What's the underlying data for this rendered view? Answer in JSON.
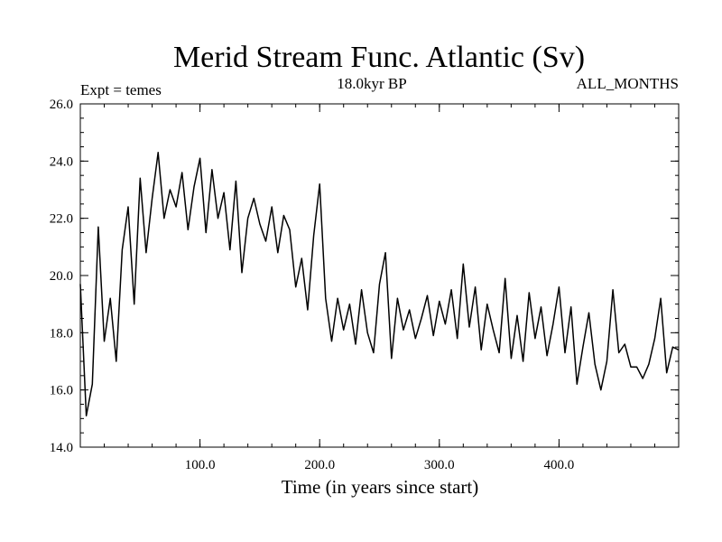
{
  "chart_data": {
    "type": "line",
    "title": "Merid Stream Func. Atlantic (Sv)",
    "subtitle_left": "Expt = temes",
    "subtitle_center": "18.0kyr BP",
    "subtitle_right": "ALL_MONTHS",
    "xlabel": "Time (in years since start)",
    "ylabel": "",
    "xlim": [
      0,
      500
    ],
    "ylim": [
      14,
      26
    ],
    "x_ticks": [
      100,
      200,
      300,
      400
    ],
    "x_tick_labels": [
      "100.0",
      "200.0",
      "300.0",
      "400.0"
    ],
    "y_ticks": [
      14,
      16,
      18,
      20,
      22,
      24,
      26
    ],
    "y_tick_labels": [
      "14.0",
      "16.0",
      "18.0",
      "20.0",
      "22.0",
      "24.0",
      "26.0"
    ],
    "grid": false,
    "line_color": "#000000",
    "series": [
      {
        "name": "Merid Stream Func. Atlantic",
        "x_start": 0,
        "x_step": 5,
        "values": [
          19.7,
          15.1,
          16.2,
          21.7,
          17.7,
          19.2,
          17.0,
          20.9,
          22.4,
          19.0,
          23.4,
          20.8,
          22.7,
          24.3,
          22.0,
          23.0,
          22.4,
          23.6,
          21.6,
          23.1,
          24.1,
          21.5,
          23.7,
          22.0,
          22.9,
          20.9,
          23.3,
          20.1,
          22.0,
          22.7,
          21.8,
          21.2,
          22.4,
          20.8,
          22.1,
          21.6,
          19.6,
          20.6,
          18.8,
          21.4,
          23.2,
          19.2,
          17.7,
          19.2,
          18.1,
          19.0,
          17.6,
          19.5,
          18.0,
          17.3,
          19.7,
          20.8,
          17.1,
          19.2,
          18.1,
          18.8,
          17.8,
          18.5,
          19.3,
          17.9,
          19.1,
          18.3,
          19.5,
          17.8,
          20.4,
          18.2,
          19.6,
          17.4,
          19.0,
          18.1,
          17.3,
          19.9,
          17.1,
          18.6,
          17.0,
          19.4,
          17.8,
          18.9,
          17.2,
          18.3,
          19.6,
          17.3,
          18.9,
          16.2,
          17.5,
          18.7,
          16.9,
          16.0,
          17.0,
          19.5,
          17.3,
          17.6,
          16.8,
          16.8,
          16.4,
          16.9,
          17.8,
          19.2,
          16.6,
          17.5,
          17.4
        ]
      }
    ]
  }
}
